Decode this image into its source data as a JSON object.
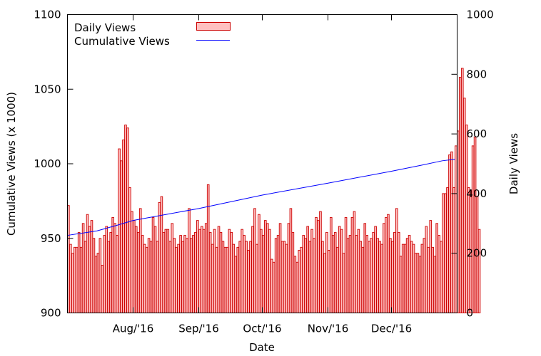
{
  "chart_data": {
    "type": "bar",
    "xlabel": "Date",
    "ylabel_left": "Cumulative Views (x 1000)",
    "ylabel_right": "Daily Views",
    "ylim_left": [
      900,
      1100
    ],
    "ylim_right": [
      0,
      1000
    ],
    "yticks_left": [
      900,
      950,
      1000,
      1050,
      1100
    ],
    "yticks_right": [
      0,
      200,
      400,
      600,
      800,
      1000
    ],
    "x_start": "2016-07-01",
    "x_end": "2016-12-31",
    "xticks": [
      {
        "label": "Aug/'16",
        "date": "2016-08-01"
      },
      {
        "label": "Sep/'16",
        "date": "2016-09-01"
      },
      {
        "label": "Oct/'16",
        "date": "2016-10-01"
      },
      {
        "label": "Nov/'16",
        "date": "2016-11-01"
      },
      {
        "label": "Dec/'16",
        "date": "2016-12-01"
      }
    ],
    "legend_position": "top-left",
    "series": [
      {
        "name": "Daily Views",
        "kind": "bar",
        "axis": "right",
        "color": "#cc0000",
        "fill": "#ffc0c0",
        "start_date": "2016-07-01",
        "values": [
          360,
          230,
          200,
          220,
          220,
          270,
          220,
          300,
          240,
          330,
          290,
          310,
          250,
          190,
          200,
          250,
          160,
          260,
          290,
          240,
          270,
          320,
          300,
          260,
          550,
          510,
          580,
          630,
          620,
          420,
          340,
          310,
          290,
          270,
          350,
          260,
          230,
          220,
          250,
          240,
          320,
          290,
          240,
          370,
          390,
          270,
          280,
          280,
          240,
          300,
          250,
          220,
          230,
          260,
          240,
          260,
          250,
          350,
          250,
          260,
          270,
          310,
          280,
          290,
          280,
          300,
          430,
          270,
          230,
          280,
          220,
          290,
          270,
          240,
          220,
          220,
          280,
          270,
          230,
          190,
          220,
          240,
          280,
          260,
          240,
          210,
          240,
          290,
          350,
          230,
          330,
          280,
          260,
          310,
          300,
          280,
          180,
          170,
          250,
          260,
          300,
          240,
          240,
          230,
          300,
          350,
          270,
          190,
          170,
          210,
          220,
          260,
          250,
          290,
          240,
          280,
          250,
          320,
          310,
          340,
          240,
          200,
          270,
          210,
          320,
          260,
          270,
          220,
          290,
          280,
          200,
          320,
          250,
          260,
          320,
          340,
          260,
          280,
          240,
          220,
          300,
          260,
          240,
          250,
          270,
          290,
          250,
          240,
          230,
          300,
          320,
          330,
          250,
          240,
          270,
          350,
          270,
          190,
          230,
          230,
          250,
          260,
          240,
          230,
          200,
          200,
          190,
          230,
          250,
          290,
          220,
          310,
          220,
          190,
          300,
          260,
          240,
          400,
          400,
          420,
          530,
          540,
          420,
          560,
          610,
          790,
          820,
          720,
          630,
          420,
          410,
          560,
          590,
          390,
          280
        ],
        "end_date": "2016-12-31"
      },
      {
        "name": "Cumulative Views",
        "kind": "line",
        "axis": "left",
        "color": "#0000ff",
        "points": [
          {
            "date": "2016-07-01",
            "value": 952
          },
          {
            "date": "2016-07-15",
            "value": 955
          },
          {
            "date": "2016-07-25",
            "value": 959
          },
          {
            "date": "2016-08-01",
            "value": 962
          },
          {
            "date": "2016-09-01",
            "value": 970
          },
          {
            "date": "2016-10-01",
            "value": 979
          },
          {
            "date": "2016-11-01",
            "value": 987
          },
          {
            "date": "2016-12-01",
            "value": 995
          },
          {
            "date": "2016-12-15",
            "value": 999
          },
          {
            "date": "2016-12-25",
            "value": 1002
          },
          {
            "date": "2016-12-31",
            "value": 1003
          }
        ]
      }
    ]
  }
}
